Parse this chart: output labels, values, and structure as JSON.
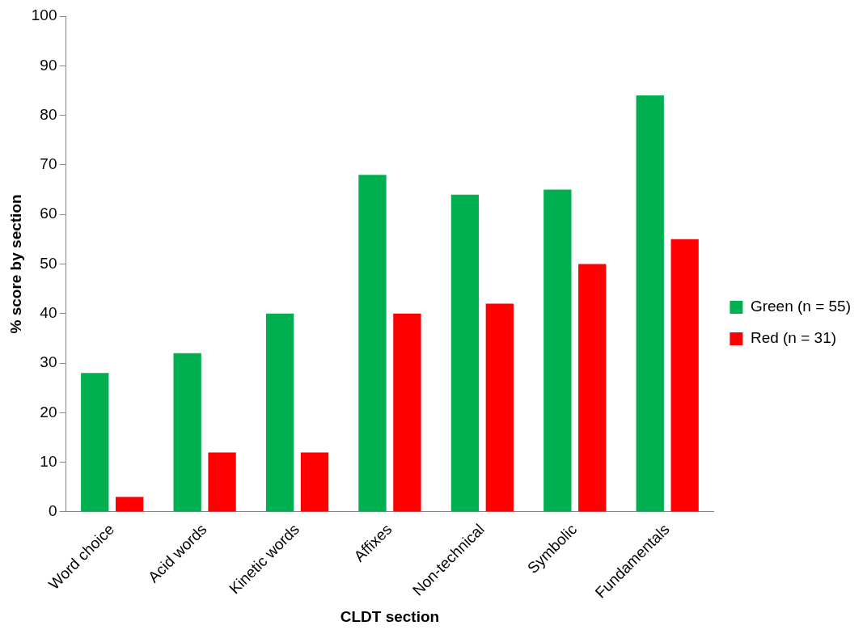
{
  "chart_data": {
    "type": "bar",
    "xlabel": "CLDT section",
    "ylabel": "% score by section",
    "categories": [
      "Word choice",
      "Acid words",
      "Kinetic words",
      "Affixes",
      "Non-technical",
      "Symbolic",
      "Fundamentals"
    ],
    "series": [
      {
        "name": "Green (n = 55)",
        "color": "#00b050",
        "values": [
          28,
          32,
          40,
          68,
          64,
          65,
          84
        ]
      },
      {
        "name": "Red (n = 31)",
        "color": "#ff0000",
        "values": [
          3,
          12,
          12,
          40,
          42,
          50,
          55
        ]
      }
    ],
    "ylim": [
      0,
      100
    ],
    "yticks": [
      0,
      10,
      20,
      30,
      40,
      50,
      60,
      70,
      80,
      90,
      100
    ],
    "grid": false,
    "legend": "right"
  }
}
